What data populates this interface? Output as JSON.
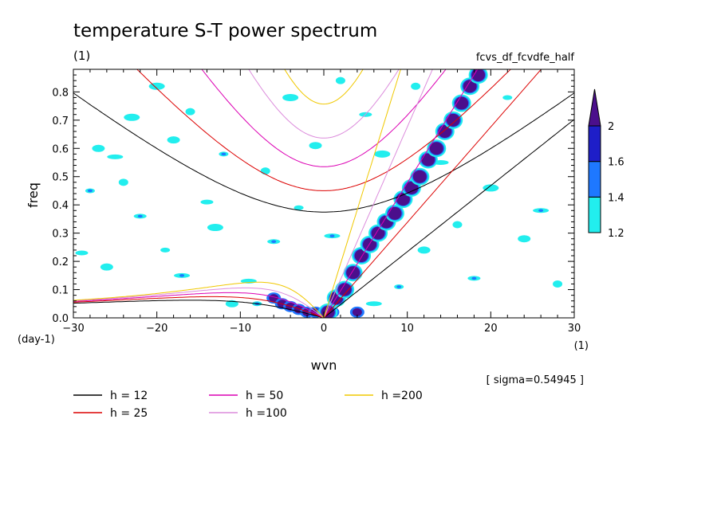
{
  "chart_data": {
    "type": "heatmap",
    "title": "temperature S-T power spectrum",
    "subtitle": "(1)",
    "run_label": "fcvs_df_fcvdfe_half",
    "xlabel": "wvn",
    "ylabel": "freq",
    "x_unit": "(1)",
    "y_unit": "(day-1)",
    "xlim": [
      -30,
      30
    ],
    "ylim": [
      0,
      0.88
    ],
    "x_ticks": [
      -30,
      -20,
      -10,
      0,
      10,
      20,
      30
    ],
    "x_tick_labels": [
      "−30",
      "−20",
      "−10",
      "0",
      "10",
      "20",
      "30"
    ],
    "y_ticks": [
      0,
      0.1,
      0.2,
      0.3,
      0.4,
      0.5,
      0.6,
      0.7,
      0.8
    ],
    "y_tick_labels": [
      "0.0",
      "0.1",
      "0.2",
      "0.3",
      "0.4",
      "0.5",
      "0.6",
      "0.7",
      "0.8"
    ],
    "sigma_label": "[ sigma=0.54945 ]",
    "colorbar": {
      "levels": [
        1.2,
        1.4,
        1.6,
        2
      ],
      "level_labels": [
        "1.2",
        "1.4",
        "1.6",
        "2"
      ],
      "colors": [
        "#22eeee",
        "#1e78ff",
        "#1e1ec8",
        "#4b0f8c"
      ]
    },
    "dispersion_curves": [
      {
        "label": "h = 12",
        "h": 12,
        "color": "#000000"
      },
      {
        "label": "h = 25",
        "h": 25,
        "color": "#dc0000"
      },
      {
        "label": "h = 50",
        "h": 50,
        "color": "#dc00b4"
      },
      {
        "label": "h =100",
        "h": 100,
        "color": "#dc8cdc"
      },
      {
        "label": "h =200",
        "h": 200,
        "color": "#f0c800"
      }
    ],
    "kelvin_band": {
      "points": [
        [
          0.5,
          0.02
        ],
        [
          1.5,
          0.07
        ],
        [
          2.5,
          0.1
        ],
        [
          3.5,
          0.16
        ],
        [
          4.5,
          0.22
        ],
        [
          5.5,
          0.26
        ],
        [
          6.5,
          0.3
        ],
        [
          7.5,
          0.34
        ],
        [
          8.5,
          0.37
        ],
        [
          9.5,
          0.42
        ],
        [
          10.5,
          0.46
        ],
        [
          11.5,
          0.5
        ],
        [
          12.5,
          0.56
        ],
        [
          13.5,
          0.6
        ],
        [
          14.5,
          0.66
        ],
        [
          15.5,
          0.7
        ],
        [
          16.5,
          0.76
        ],
        [
          17.5,
          0.82
        ],
        [
          18.5,
          0.86
        ]
      ],
      "level": 2
    },
    "mrg_band": {
      "points": [
        [
          -6,
          0.07
        ],
        [
          -5,
          0.05
        ],
        [
          -4,
          0.04
        ],
        [
          -3,
          0.03
        ],
        [
          -2,
          0.02
        ],
        [
          -1,
          0.02
        ],
        [
          0,
          0.02
        ],
        [
          1,
          0.02
        ],
        [
          4,
          0.02
        ]
      ],
      "level": 1.6
    },
    "scatter_patches": [
      [
        -28,
        0.45
      ],
      [
        -26,
        0.18
      ],
      [
        -25,
        0.57
      ],
      [
        -24,
        0.48
      ],
      [
        -22,
        0.36
      ],
      [
        -20,
        0.82
      ],
      [
        -19,
        0.24
      ],
      [
        -18,
        0.63
      ],
      [
        -17,
        0.15
      ],
      [
        -16,
        0.73
      ],
      [
        -14,
        0.41
      ],
      [
        -13,
        0.32
      ],
      [
        -12,
        0.58
      ],
      [
        -11,
        0.05
      ],
      [
        -9,
        0.13
      ],
      [
        -7,
        0.52
      ],
      [
        -6,
        0.27
      ],
      [
        -4,
        0.78
      ],
      [
        -3,
        0.39
      ],
      [
        -1,
        0.61
      ],
      [
        1,
        0.29
      ],
      [
        2,
        0.84
      ],
      [
        5,
        0.72
      ],
      [
        7,
        0.58
      ],
      [
        9,
        0.11
      ],
      [
        12,
        0.24
      ],
      [
        14,
        0.55
      ],
      [
        16,
        0.33
      ],
      [
        18,
        0.14
      ],
      [
        20,
        0.46
      ],
      [
        22,
        0.78
      ],
      [
        24,
        0.28
      ],
      [
        26,
        0.38
      ],
      [
        28,
        0.12
      ],
      [
        -29,
        0.23
      ],
      [
        -23,
        0.71
      ],
      [
        -8,
        0.05
      ],
      [
        -27,
        0.6
      ],
      [
        6,
        0.05
      ],
      [
        11,
        0.82
      ]
    ]
  }
}
